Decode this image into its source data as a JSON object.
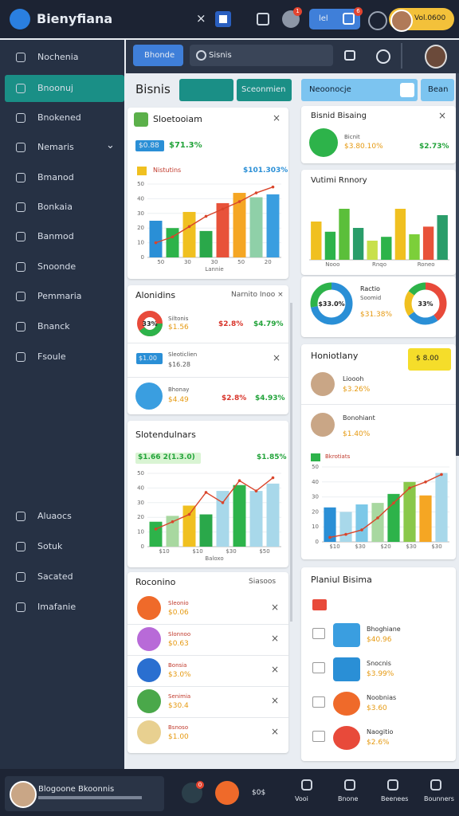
{
  "header": {
    "brand": "Bienyfiana",
    "close": "×",
    "button": "lel",
    "badge_1": "1",
    "badge_2": "6",
    "pill": "Vol.0600"
  },
  "sidebar": {
    "items": [
      "Nochenia",
      "Bnoonuj",
      "Bnokened",
      "Nemaris",
      "Bmanod",
      "Bonkaia",
      "Banmod",
      "Snoonde",
      "Pemmaria",
      "Bnanck",
      "Fsoule"
    ],
    "lower": [
      "Aluaocs",
      "Sotuk",
      "Sacated",
      "Imafanie"
    ]
  },
  "toolbar": {
    "button": "Bhonde",
    "search": "Sisnis"
  },
  "left": {
    "title": "Bisnis",
    "tab": "Sceonmien",
    "card1": {
      "title": "Sloetooiam",
      "pill": "$0.88",
      "value": "$71.3%",
      "legend": "Nistutins",
      "legend_value": "$101.303%",
      "chart": {
        "ylim": [
          0,
          50
        ],
        "yticks": [
          0,
          10,
          20,
          30,
          40,
          50
        ],
        "categories": [
          "50",
          "30",
          "30",
          "50",
          "20"
        ],
        "xlabel": "Lannie",
        "values": [
          25,
          20,
          31,
          18,
          37,
          44,
          41,
          43
        ],
        "colors": [
          "#2a8fd6",
          "#2db34a",
          "#f0c020",
          "#2aa84a",
          "#e8523a",
          "#f5a623",
          "#8fd0a8",
          "#3a9ee0"
        ],
        "line": [
          10,
          14,
          21,
          28,
          33,
          38,
          44,
          48
        ],
        "line_color": "#d9452b"
      }
    },
    "card2": {
      "title": "Alonidins",
      "link": "Narnito Inoo ×",
      "rows": [
        {
          "badge": "33%",
          "name": "Siltonis",
          "sub": "$1.56",
          "a": "$2.8%",
          "b": "$4.79%"
        },
        {
          "tag": "$1.00",
          "name": "Sleoticlien",
          "sub": "$16.28"
        },
        {
          "name": "Bhonay",
          "sub": "$4.49",
          "a": "$2.8%",
          "b": "$4.93%"
        }
      ]
    },
    "card3": {
      "title": "Slotendulnars",
      "pill": "$1.66 2(1.3.0)",
      "value": "$1.85%",
      "chart": {
        "ylim": [
          0,
          50
        ],
        "yticks": [
          0,
          10,
          20,
          30,
          40,
          50
        ],
        "categories": [
          "$10",
          "$10",
          "$30",
          "$50"
        ],
        "xlabel": "Baloxo",
        "values": [
          17,
          21,
          28,
          22,
          38,
          42,
          38,
          43
        ],
        "colors": [
          "#2db34a",
          "#a8d8a0",
          "#f0c020",
          "#2aa84a",
          "#a8d8ea",
          "#2db34a",
          "#a8d8ea",
          "#a8d8ea"
        ],
        "line": [
          12,
          17,
          22,
          37,
          30,
          45,
          38,
          47
        ],
        "line_color": "#d9452b"
      }
    },
    "card4": {
      "title": "Roconino",
      "link": "Siasoos",
      "rows": [
        {
          "name": "Sleonio",
          "sub": "$0.06"
        },
        {
          "name": "Slonnoo",
          "sub": "$0.63"
        },
        {
          "name": "Bonsia",
          "sub": "$3.0%"
        },
        {
          "name": "Senimia",
          "sub": "$30.4"
        },
        {
          "name": "Bsnoso",
          "sub": "$1.00"
        }
      ]
    }
  },
  "right": {
    "input": "Neoonocje",
    "button": "Bean",
    "card1": {
      "title": "Bisnid Bisaing",
      "name": "Bicnit",
      "a": "$3.80.10%",
      "b": "$2.73%"
    },
    "card2": {
      "title": "Vutimi Rnnory",
      "chart": {
        "ylim": [
          0,
          50
        ],
        "categories": [
          "Nooo",
          "Rnqo",
          "Roneo"
        ],
        "values": [
          30,
          22,
          40,
          25,
          15,
          18,
          40,
          20,
          26,
          35
        ],
        "colors": [
          "#f0c020",
          "#2db34a",
          "#5bbf3a",
          "#2a9d6a",
          "#c8e04a",
          "#2db34a",
          "#f0c020",
          "#7ccf3a",
          "#e8523a",
          "#2a9d6a"
        ]
      }
    },
    "card3": {
      "donut1": {
        "label": "$33.0%",
        "values": [
          72,
          28
        ],
        "colors": [
          "#2a8fd6",
          "#2db34a"
        ]
      },
      "name": "Ractio",
      "sub": "Soomid",
      "value": "$31.38%",
      "donut2": {
        "label": "33%",
        "values": [
          40,
          25,
          20,
          15
        ],
        "colors": [
          "#e84a3a",
          "#2a8fd6",
          "#f0c020",
          "#2db34a"
        ]
      }
    },
    "card4": {
      "title": "Honiotlany",
      "button": "$ 8.00",
      "rows": [
        {
          "name": "Lioooh",
          "sub": "$3.26%"
        },
        {
          "name": "Bonohiant",
          "sub": "$1.40%"
        }
      ],
      "legend": "Bkrotiats",
      "chart": {
        "ylim": [
          0,
          50
        ],
        "yticks": [
          0,
          10,
          20,
          30,
          40,
          50
        ],
        "categories": [
          "$10",
          "$30",
          "$20",
          "$30",
          "$30"
        ],
        "values": [
          23,
          20,
          25,
          26,
          32,
          40,
          31,
          46
        ],
        "colors": [
          "#2a8fd6",
          "#a8d8ea",
          "#7cc8e8",
          "#a8d8a0",
          "#2db34a",
          "#8ac84a",
          "#f5a623",
          "#a8d8ea"
        ],
        "line": [
          3,
          5,
          8,
          16,
          26,
          36,
          40,
          45
        ],
        "line_color": "#d9452b"
      }
    },
    "card5": {
      "title": "Planiul Bisima",
      "rows": [
        {
          "name": "Bhoghiane",
          "sub": "$40.96"
        },
        {
          "name": "Snocnis",
          "sub": "$3.99%"
        },
        {
          "name": "Noobnias",
          "sub": "$3.60"
        },
        {
          "name": "Naogitio",
          "sub": "$2.6%"
        }
      ]
    }
  },
  "bottom": {
    "user": "Blogoone Bkoonnis",
    "badge": "0",
    "amount": "$0$",
    "nav": [
      "Vooi",
      "Bnone",
      "Beenees",
      "Bounners"
    ]
  }
}
